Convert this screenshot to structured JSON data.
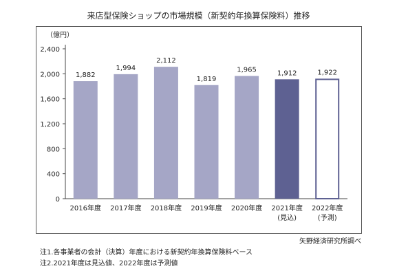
{
  "title": "来店型保険ショップの市場規模（新契約年換算保険料）推移",
  "source": "矢野経済研究所調べ",
  "notes": [
    "注1.各事業者の会計（決算）年度における新契約年換算保険料ベース",
    "注2.2021年度は見込値、2022年度は予測値"
  ],
  "colors": {
    "actual": "#a5a6c6",
    "estimate": "#5e6192",
    "forecast_border": "#5e6192"
  },
  "chart_data": {
    "type": "bar",
    "ylabel": "（億円）",
    "ylim": [
      0,
      2400
    ],
    "yticks": [
      0,
      400,
      800,
      1200,
      1600,
      2000,
      2400
    ],
    "ytick_labels": [
      "0",
      "400",
      "800",
      "1,200",
      "1,600",
      "2,000",
      "2,400"
    ],
    "grid": false,
    "categories": [
      "2016年度",
      "2017年度",
      "2018年度",
      "2019年度",
      "2020年度",
      "2021年度",
      "2022年度"
    ],
    "sublabels": [
      "",
      "",
      "",
      "",
      "",
      "(見込)",
      "(予測)"
    ],
    "values": [
      1882,
      1994,
      2112,
      1819,
      1965,
      1912,
      1922
    ],
    "value_labels": [
      "1,882",
      "1,994",
      "2,112",
      "1,819",
      "1,965",
      "1,912",
      "1,922"
    ],
    "styles": [
      "actual",
      "actual",
      "actual",
      "actual",
      "actual",
      "estimate",
      "forecast"
    ]
  }
}
